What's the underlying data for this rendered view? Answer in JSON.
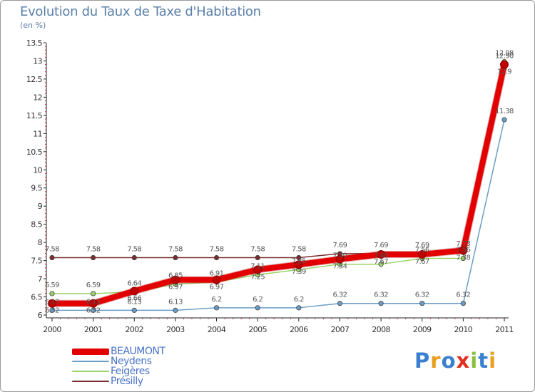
{
  "chart_data": {
    "type": "line",
    "title": "Evolution du Taux de Taxe d'Habitation",
    "subtitle": "(en %)",
    "xlabel": "",
    "ylabel": "",
    "categories": [
      "2000",
      "2001",
      "2002",
      "2003",
      "2004",
      "2005",
      "2006",
      "2007",
      "2008",
      "2009",
      "2010",
      "2011"
    ],
    "ylim": [
      6,
      13.5
    ],
    "yticks": [
      6,
      6.5,
      7,
      7.5,
      8,
      8.5,
      9,
      9.5,
      10,
      10.5,
      11,
      11.5,
      12,
      12.5,
      13,
      13.5
    ],
    "ytick_labels": [
      "6",
      "6.5",
      "7",
      "7.5",
      "8",
      "8.5",
      "9",
      "9.5",
      "10",
      "10.5",
      "11",
      "11.5",
      "12",
      "12.5",
      "13",
      "13.5"
    ],
    "grid": false,
    "legend_position": "bottom-left",
    "series": [
      {
        "name": "Présilly",
        "color": "#7a2f2f",
        "values": [
          7.58,
          7.58,
          7.58,
          7.58,
          7.58,
          7.58,
          7.58,
          7.69,
          7.69,
          7.69,
          7.73,
          12.9
        ],
        "labels": [
          "7.58",
          "7.58",
          "7.58",
          "7.58",
          "7.58",
          "7.58",
          "7.58",
          "7.69",
          "7.69",
          "7.69",
          "7.73",
          "12.90"
        ]
      },
      {
        "name": "Feigères",
        "color": "#9ad36a",
        "values": [
          6.59,
          6.59,
          6.64,
          6.85,
          6.91,
          7.11,
          7.25,
          7.4,
          7.4,
          7.56,
          7.56,
          12.98
        ],
        "labels": [
          "6.59",
          "6.59",
          "6.64",
          "6.85",
          "6.91",
          "7.11",
          "7.25",
          "7.40",
          "7.40",
          "7.56",
          "7.56",
          "12.98"
        ]
      },
      {
        "name": "Neydens",
        "color": "#6a9ec8",
        "values": [
          6.13,
          6.13,
          6.13,
          6.13,
          6.2,
          6.2,
          6.2,
          6.32,
          6.32,
          6.32,
          6.32,
          11.38
        ],
        "labels": [
          "6.13",
          "6.13",
          "6.13",
          "6.13",
          "6.2",
          "6.2",
          "6.2",
          "6.32",
          "6.32",
          "6.32",
          "6.32",
          "11.38"
        ]
      },
      {
        "name": "BEAUMONT",
        "color": "#e20000",
        "values": [
          6.32,
          6.32,
          6.66,
          6.97,
          6.97,
          7.25,
          7.39,
          7.54,
          7.67,
          7.67,
          7.78,
          12.9
        ],
        "labels": [
          "6.32",
          "6.32",
          "6.66",
          "6.97",
          "6.97",
          "7.25",
          "7.39",
          "7.54",
          "7.67",
          "7.67",
          "7.78",
          "12.9"
        ]
      }
    ],
    "legend": [
      "BEAUMONT",
      "Neydens",
      "Feigères",
      "Présilly"
    ]
  },
  "legend_colors": {
    "BEAUMONT": "#e20000",
    "Neydens": "#6a9ec8",
    "Feigères": "#9ad36a",
    "Présilly": "#7a2f2f"
  },
  "legend_text_color": "#4a74c9",
  "brand": {
    "letters": [
      "P",
      "r",
      "o",
      "x",
      "i",
      "t",
      "i"
    ],
    "colors": [
      "#3a7fd0",
      "#e8a020",
      "#3a7fd0",
      "#e23020",
      "#8ac040",
      "#3a7fd0",
      "#e8a020"
    ]
  }
}
